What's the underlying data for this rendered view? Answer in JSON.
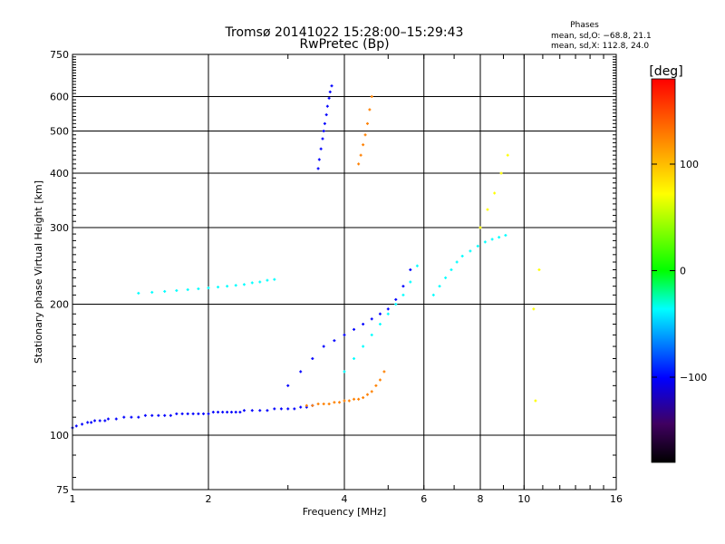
{
  "chart_data": {
    "type": "scatter",
    "title": "Tromsø 20141022 15:28:00–15:29:43",
    "subtitle": "RwPretec (Bp)",
    "phases_box": {
      "title": "Phases",
      "line1": "mean, sd,O: −68.8, 21.1",
      "line2": "mean, sd,X: 112.8, 24.0"
    },
    "xlabel": "Frequency [MHz]",
    "ylabel": "Stationary phase Virtual Height [km]",
    "x_scale": "log",
    "y_scale": "log",
    "xlim": [
      1,
      16
    ],
    "ylim": [
      75,
      750
    ],
    "grid": true,
    "xticks": [
      {
        "value": 1,
        "label": "1"
      },
      {
        "value": 2,
        "label": "2"
      },
      {
        "value": 4,
        "label": "4"
      },
      {
        "value": 6,
        "label": "6"
      },
      {
        "value": 8,
        "label": "8"
      },
      {
        "value": 10,
        "label": "10"
      },
      {
        "value": 16,
        "label": "16"
      }
    ],
    "xgrid": [
      2,
      4,
      6,
      8,
      10
    ],
    "yticks": [
      {
        "value": 75,
        "label": "75"
      },
      {
        "value": 100,
        "label": "100"
      },
      {
        "value": 200,
        "label": "200"
      },
      {
        "value": 300,
        "label": "300"
      },
      {
        "value": 400,
        "label": "400"
      },
      {
        "value": 500,
        "label": "500"
      },
      {
        "value": 600,
        "label": "600"
      },
      {
        "value": 750,
        "label": "750"
      }
    ],
    "ygrid": [
      100,
      200,
      300,
      400,
      500,
      600
    ],
    "colorbar": {
      "label": "[deg]",
      "range": [
        -180,
        180
      ],
      "ticks": [
        {
          "value": 100,
          "label": "100"
        },
        {
          "value": 0,
          "label": "0"
        },
        {
          "value": -100,
          "label": "−100"
        }
      ],
      "stops": [
        "#ff0000",
        "#ff8000",
        "#ffff00",
        "#00ff00",
        "#00ffff",
        "#0000ff",
        "#400060",
        "#000000"
      ]
    },
    "series": [
      {
        "x": [
          1.0,
          1.02,
          1.05,
          1.08,
          1.1,
          1.12,
          1.15,
          1.18,
          1.2,
          1.25,
          1.3,
          1.35,
          1.4,
          1.45,
          1.5,
          1.55,
          1.6,
          1.65,
          1.7,
          1.75,
          1.8,
          1.85,
          1.9,
          1.95,
          2.0,
          2.05,
          2.1,
          2.15,
          2.2,
          2.25,
          2.3,
          2.35,
          2.4,
          2.5,
          2.6,
          2.7,
          2.8,
          2.9,
          3.0,
          3.1,
          3.2,
          3.3,
          3.4
        ],
        "y": [
          104,
          105,
          106,
          107,
          107,
          108,
          108,
          108,
          109,
          109,
          110,
          110,
          110,
          111,
          111,
          111,
          111,
          111,
          112,
          112,
          112,
          112,
          112,
          112,
          112,
          113,
          113,
          113,
          113,
          113,
          113,
          113,
          114,
          114,
          114,
          114,
          115,
          115,
          115,
          115,
          116,
          116,
          117
        ],
        "phase": -60
      },
      {
        "x": [
          3.3,
          3.4,
          3.5,
          3.6,
          3.7,
          3.8,
          3.9,
          4.0,
          4.1,
          4.2,
          4.3,
          4.4,
          4.5,
          4.6,
          4.7,
          4.8,
          4.9
        ],
        "y": [
          117,
          117,
          118,
          118,
          118,
          119,
          119,
          120,
          120,
          121,
          121,
          122,
          124,
          126,
          130,
          134,
          140
        ],
        "phase": 120
      },
      {
        "x": [
          1.4,
          1.5,
          1.6,
          1.7,
          1.8,
          1.9,
          2.0,
          2.1,
          2.2,
          2.3,
          2.4,
          2.5,
          2.6,
          2.7,
          2.8
        ],
        "y": [
          212,
          213,
          214,
          215,
          216,
          217,
          218,
          219,
          220,
          221,
          222,
          224,
          225,
          227,
          228
        ],
        "phase": -50
      },
      {
        "x": [
          3.5,
          3.52,
          3.55,
          3.58,
          3.6,
          3.62,
          3.65,
          3.67,
          3.7,
          3.72,
          3.75
        ],
        "y": [
          410,
          430,
          455,
          480,
          500,
          520,
          545,
          570,
          595,
          615,
          635
        ],
        "phase": -100
      },
      {
        "x": [
          4.3,
          4.35,
          4.4,
          4.45,
          4.5,
          4.55,
          4.6
        ],
        "y": [
          420,
          440,
          465,
          490,
          520,
          560,
          600
        ],
        "phase": 130
      },
      {
        "x": [
          3.0,
          3.2,
          3.4,
          3.6,
          3.8,
          4.0,
          4.2,
          4.4,
          4.6,
          4.8,
          5.0,
          5.2,
          5.4,
          5.6
        ],
        "y": [
          130,
          140,
          150,
          160,
          165,
          170,
          175,
          180,
          185,
          190,
          195,
          205,
          220,
          240
        ],
        "phase": -90
      },
      {
        "x": [
          4.0,
          4.2,
          4.4,
          4.6,
          4.8,
          5.0,
          5.2,
          5.4,
          5.6,
          5.8
        ],
        "y": [
          140,
          150,
          160,
          170,
          180,
          190,
          200,
          210,
          225,
          245
        ],
        "phase": -40
      },
      {
        "x": [
          6.3,
          6.5,
          6.7,
          6.9,
          7.1,
          7.3,
          7.6,
          7.9,
          8.2,
          8.5,
          8.8,
          9.1
        ],
        "y": [
          210,
          220,
          230,
          240,
          250,
          258,
          265,
          272,
          278,
          282,
          285,
          288
        ],
        "phase": -30
      },
      {
        "x": [
          8.0,
          8.3,
          8.6,
          8.9,
          9.2
        ],
        "y": [
          300,
          330,
          360,
          400,
          440
        ],
        "phase": 90
      },
      {
        "x": [
          10.5,
          10.6,
          10.8
        ],
        "y": [
          195,
          120,
          240
        ],
        "phase": 60
      }
    ]
  }
}
